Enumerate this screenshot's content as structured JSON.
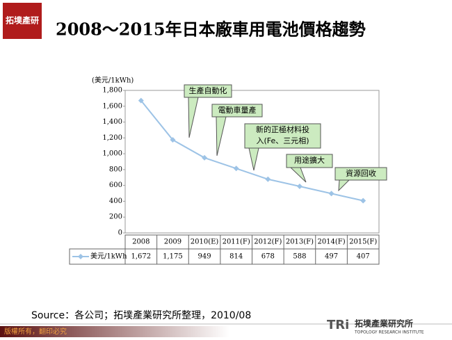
{
  "header": {
    "logo": "拓墣產研",
    "title": "2008～2015年日本廠車用電池價格趨勢"
  },
  "chart_data": {
    "type": "line",
    "y_label": "(美元/1kWh)",
    "categories": [
      "2008",
      "2009",
      "2010(E)",
      "2011(F)",
      "2012(F)",
      "2013(F)",
      "2014(F)",
      "2015(F)"
    ],
    "series": [
      {
        "name": "美元/1kWh",
        "color": "#9dc3e6",
        "values": [
          1672,
          1175,
          949,
          814,
          678,
          588,
          497,
          407
        ],
        "value_labels": [
          "1,672",
          "1,175",
          "949",
          "814",
          "678",
          "588",
          "497",
          "407"
        ]
      }
    ],
    "ylim": [
      0,
      1800
    ],
    "yticks": [
      0,
      200,
      400,
      600,
      800,
      {
        "value": 1000,
        "label": "1,000"
      },
      {
        "value": 1200,
        "label": "1,200"
      },
      {
        "value": 1400,
        "label": "1,400"
      },
      {
        "value": 1600,
        "label": "1,600"
      },
      {
        "value": 1800,
        "label": "1,800"
      }
    ],
    "annotations": [
      {
        "lines": [
          "生產自動化"
        ]
      },
      {
        "lines": [
          "電動車量產"
        ]
      },
      {
        "lines": [
          "新的正極材料投",
          "入(Fe、三元相)"
        ]
      },
      {
        "lines": [
          "用途擴大"
        ]
      },
      {
        "lines": [
          "資源回收"
        ]
      }
    ]
  },
  "source": "Source：各公司；拓墣產業研究所整理，2010/08",
  "footer": {
    "copyright": "版權所有，翻印必究",
    "brand": "拓墣產業研究所",
    "brand_en": "TOPOLOGY RESEARCH INSTITUTE",
    "brand_mark": "TRi"
  }
}
